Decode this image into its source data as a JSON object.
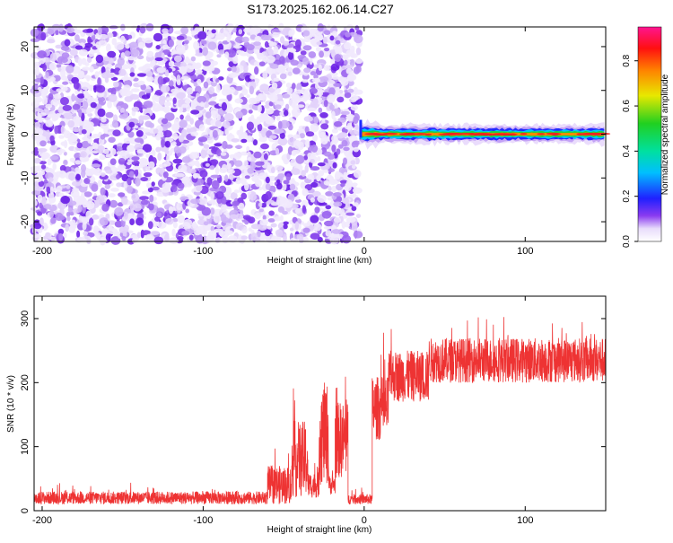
{
  "title": "S173.2025.162.06.14.C27",
  "chart_data": [
    {
      "type": "heatmap",
      "xlabel": "Height of straight line (km)",
      "ylabel": "Frequency (Hz)",
      "xlim": [
        -205,
        150
      ],
      "ylim": [
        -24.5,
        24.5
      ],
      "x_ticks": [
        -200,
        -100,
        0,
        100
      ],
      "y_ticks": [
        -20,
        -10,
        0,
        10,
        20
      ],
      "colorbar": {
        "label": "Normalized spectral amplitude",
        "range": [
          0,
          0.95
        ],
        "ticks": [
          0.0,
          0.2,
          0.4,
          0.6,
          0.8
        ]
      },
      "regions": [
        {
          "x_range": [
            -205,
            -3
          ],
          "description_values": {
            "amplitude_range": [
              0.0,
              0.12
            ],
            "freq_range": [
              -24.5,
              24.5
            ]
          }
        },
        {
          "x_range": [
            -3,
            150
          ],
          "description_values": {
            "amplitude_range": [
              0.1,
              0.85
            ],
            "freq_range": [
              -1.5,
              1.5
            ],
            "peak_freq": 0
          }
        }
      ]
    },
    {
      "type": "line",
      "xlabel": "Height of straight line (km)",
      "ylabel": "SNR (10 * v/v)",
      "xlim": [
        -205,
        150
      ],
      "ylim": [
        0,
        335
      ],
      "x_ticks": [
        -200,
        -100,
        0,
        100
      ],
      "y_ticks": [
        0,
        100,
        200,
        300
      ],
      "color": "#ee3333",
      "segments": [
        {
          "x_range": [
            -205,
            -60
          ],
          "mean": 20,
          "spread": 10
        },
        {
          "x_range": [
            -60,
            -45
          ],
          "mean": 40,
          "spread": 30
        },
        {
          "x_range": [
            -45,
            -35
          ],
          "mean": 80,
          "spread": 60
        },
        {
          "x_range": [
            -35,
            -28
          ],
          "mean": 40,
          "spread": 20
        },
        {
          "x_range": [
            -28,
            -22
          ],
          "mean": 120,
          "spread": 80
        },
        {
          "x_range": [
            -22,
            -18
          ],
          "mean": 40,
          "spread": 15
        },
        {
          "x_range": [
            -18,
            -10
          ],
          "mean": 110,
          "spread": 60
        },
        {
          "x_range": [
            -10,
            5
          ],
          "mean": 18,
          "spread": 8
        },
        {
          "x_range": [
            5,
            15
          ],
          "mean": 160,
          "spread": 50
        },
        {
          "x_range": [
            15,
            40
          ],
          "mean": 210,
          "spread": 40
        },
        {
          "x_range": [
            40,
            150
          ],
          "mean": 235,
          "spread": 35
        }
      ]
    }
  ]
}
